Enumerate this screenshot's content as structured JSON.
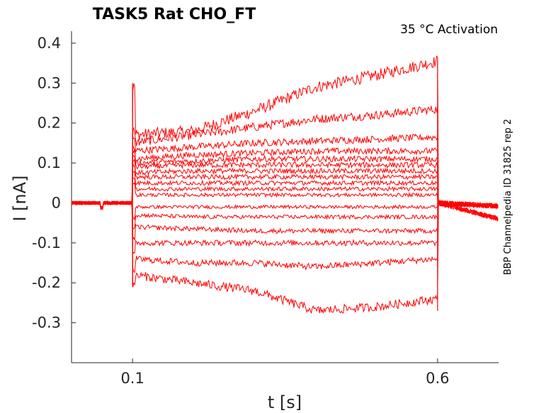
{
  "chart_data": {
    "type": "line",
    "title": "TASK5  Rat  CHO_FT",
    "annotation": "35 °C  Activation",
    "side_note": "BBP Channelpedia ID 31825 rep 2",
    "xlabel": "t [s]",
    "ylabel": "I [nA]",
    "xlim": [
      0.0,
      0.7
    ],
    "ylim": [
      -0.4,
      0.43
    ],
    "x_ticks": [
      0.1,
      0.6
    ],
    "x_tick_labels": [
      "0.1",
      "0.6"
    ],
    "y_ticks": [
      0.4,
      0.3,
      0.2,
      0.1,
      0,
      -0.1,
      -0.2,
      -0.3
    ],
    "y_tick_labels": [
      "0.4",
      "0.3",
      "0.2",
      "0.1",
      "0",
      "-0.1",
      "-0.2",
      "-0.3"
    ],
    "grid": false,
    "line_color": "#ff0000",
    "pulse": {
      "start": 0.1,
      "end": 0.6
    },
    "series": [
      {
        "x": [
          0.1,
          0.2,
          0.3,
          0.4,
          0.5,
          0.6
        ],
        "values": [
          0.17,
          0.18,
          0.23,
          0.29,
          0.32,
          0.355
        ]
      },
      {
        "x": [
          0.1,
          0.2,
          0.3,
          0.4,
          0.5,
          0.6
        ],
        "values": [
          0.15,
          0.17,
          0.19,
          0.21,
          0.22,
          0.235
        ]
      },
      {
        "x": [
          0.1,
          0.2,
          0.3,
          0.4,
          0.5,
          0.6
        ],
        "values": [
          0.13,
          0.14,
          0.15,
          0.155,
          0.16,
          0.165
        ]
      },
      {
        "x": [
          0.1,
          0.2,
          0.3,
          0.4,
          0.5,
          0.6
        ],
        "values": [
          0.11,
          0.12,
          0.125,
          0.13,
          0.13,
          0.13
        ]
      },
      {
        "x": [
          0.1,
          0.2,
          0.3,
          0.4,
          0.5,
          0.6
        ],
        "values": [
          0.1,
          0.105,
          0.11,
          0.11,
          0.11,
          0.11
        ]
      },
      {
        "x": [
          0.1,
          0.2,
          0.3,
          0.4,
          0.5,
          0.6
        ],
        "values": [
          0.09,
          0.095,
          0.095,
          0.095,
          0.095,
          0.095
        ]
      },
      {
        "x": [
          0.1,
          0.2,
          0.3,
          0.4,
          0.5,
          0.6
        ],
        "values": [
          0.075,
          0.08,
          0.08,
          0.08,
          0.08,
          0.08
        ]
      },
      {
        "x": [
          0.1,
          0.2,
          0.3,
          0.4,
          0.5,
          0.6
        ],
        "values": [
          0.065,
          0.065,
          0.065,
          0.065,
          0.065,
          0.065
        ]
      },
      {
        "x": [
          0.1,
          0.2,
          0.3,
          0.4,
          0.5,
          0.6
        ],
        "values": [
          0.05,
          0.05,
          0.05,
          0.05,
          0.05,
          0.05
        ]
      },
      {
        "x": [
          0.1,
          0.2,
          0.3,
          0.4,
          0.5,
          0.6
        ],
        "values": [
          0.035,
          0.035,
          0.035,
          0.035,
          0.035,
          0.035
        ]
      },
      {
        "x": [
          0.1,
          0.2,
          0.3,
          0.4,
          0.5,
          0.6
        ],
        "values": [
          0.02,
          0.02,
          0.02,
          0.02,
          0.02,
          0.02
        ]
      },
      {
        "x": [
          0.1,
          0.2,
          0.3,
          0.4,
          0.5,
          0.6
        ],
        "values": [
          -0.01,
          -0.01,
          -0.01,
          -0.01,
          -0.01,
          -0.01
        ]
      },
      {
        "x": [
          0.1,
          0.2,
          0.3,
          0.4,
          0.5,
          0.6
        ],
        "values": [
          -0.03,
          -0.035,
          -0.035,
          -0.035,
          -0.035,
          -0.035
        ]
      },
      {
        "x": [
          0.1,
          0.2,
          0.3,
          0.4,
          0.5,
          0.6
        ],
        "values": [
          -0.06,
          -0.065,
          -0.07,
          -0.07,
          -0.07,
          -0.07
        ]
      },
      {
        "x": [
          0.1,
          0.2,
          0.3,
          0.4,
          0.5,
          0.6
        ],
        "values": [
          -0.1,
          -0.1,
          -0.1,
          -0.1,
          -0.1,
          -0.1
        ]
      },
      {
        "x": [
          0.1,
          0.2,
          0.3,
          0.4,
          0.5,
          0.6
        ],
        "values": [
          -0.14,
          -0.15,
          -0.15,
          -0.16,
          -0.15,
          -0.14
        ]
      },
      {
        "x": [
          0.1,
          0.2,
          0.3,
          0.4,
          0.5,
          0.6
        ],
        "values": [
          -0.18,
          -0.2,
          -0.22,
          -0.27,
          -0.26,
          -0.24
        ]
      }
    ]
  }
}
